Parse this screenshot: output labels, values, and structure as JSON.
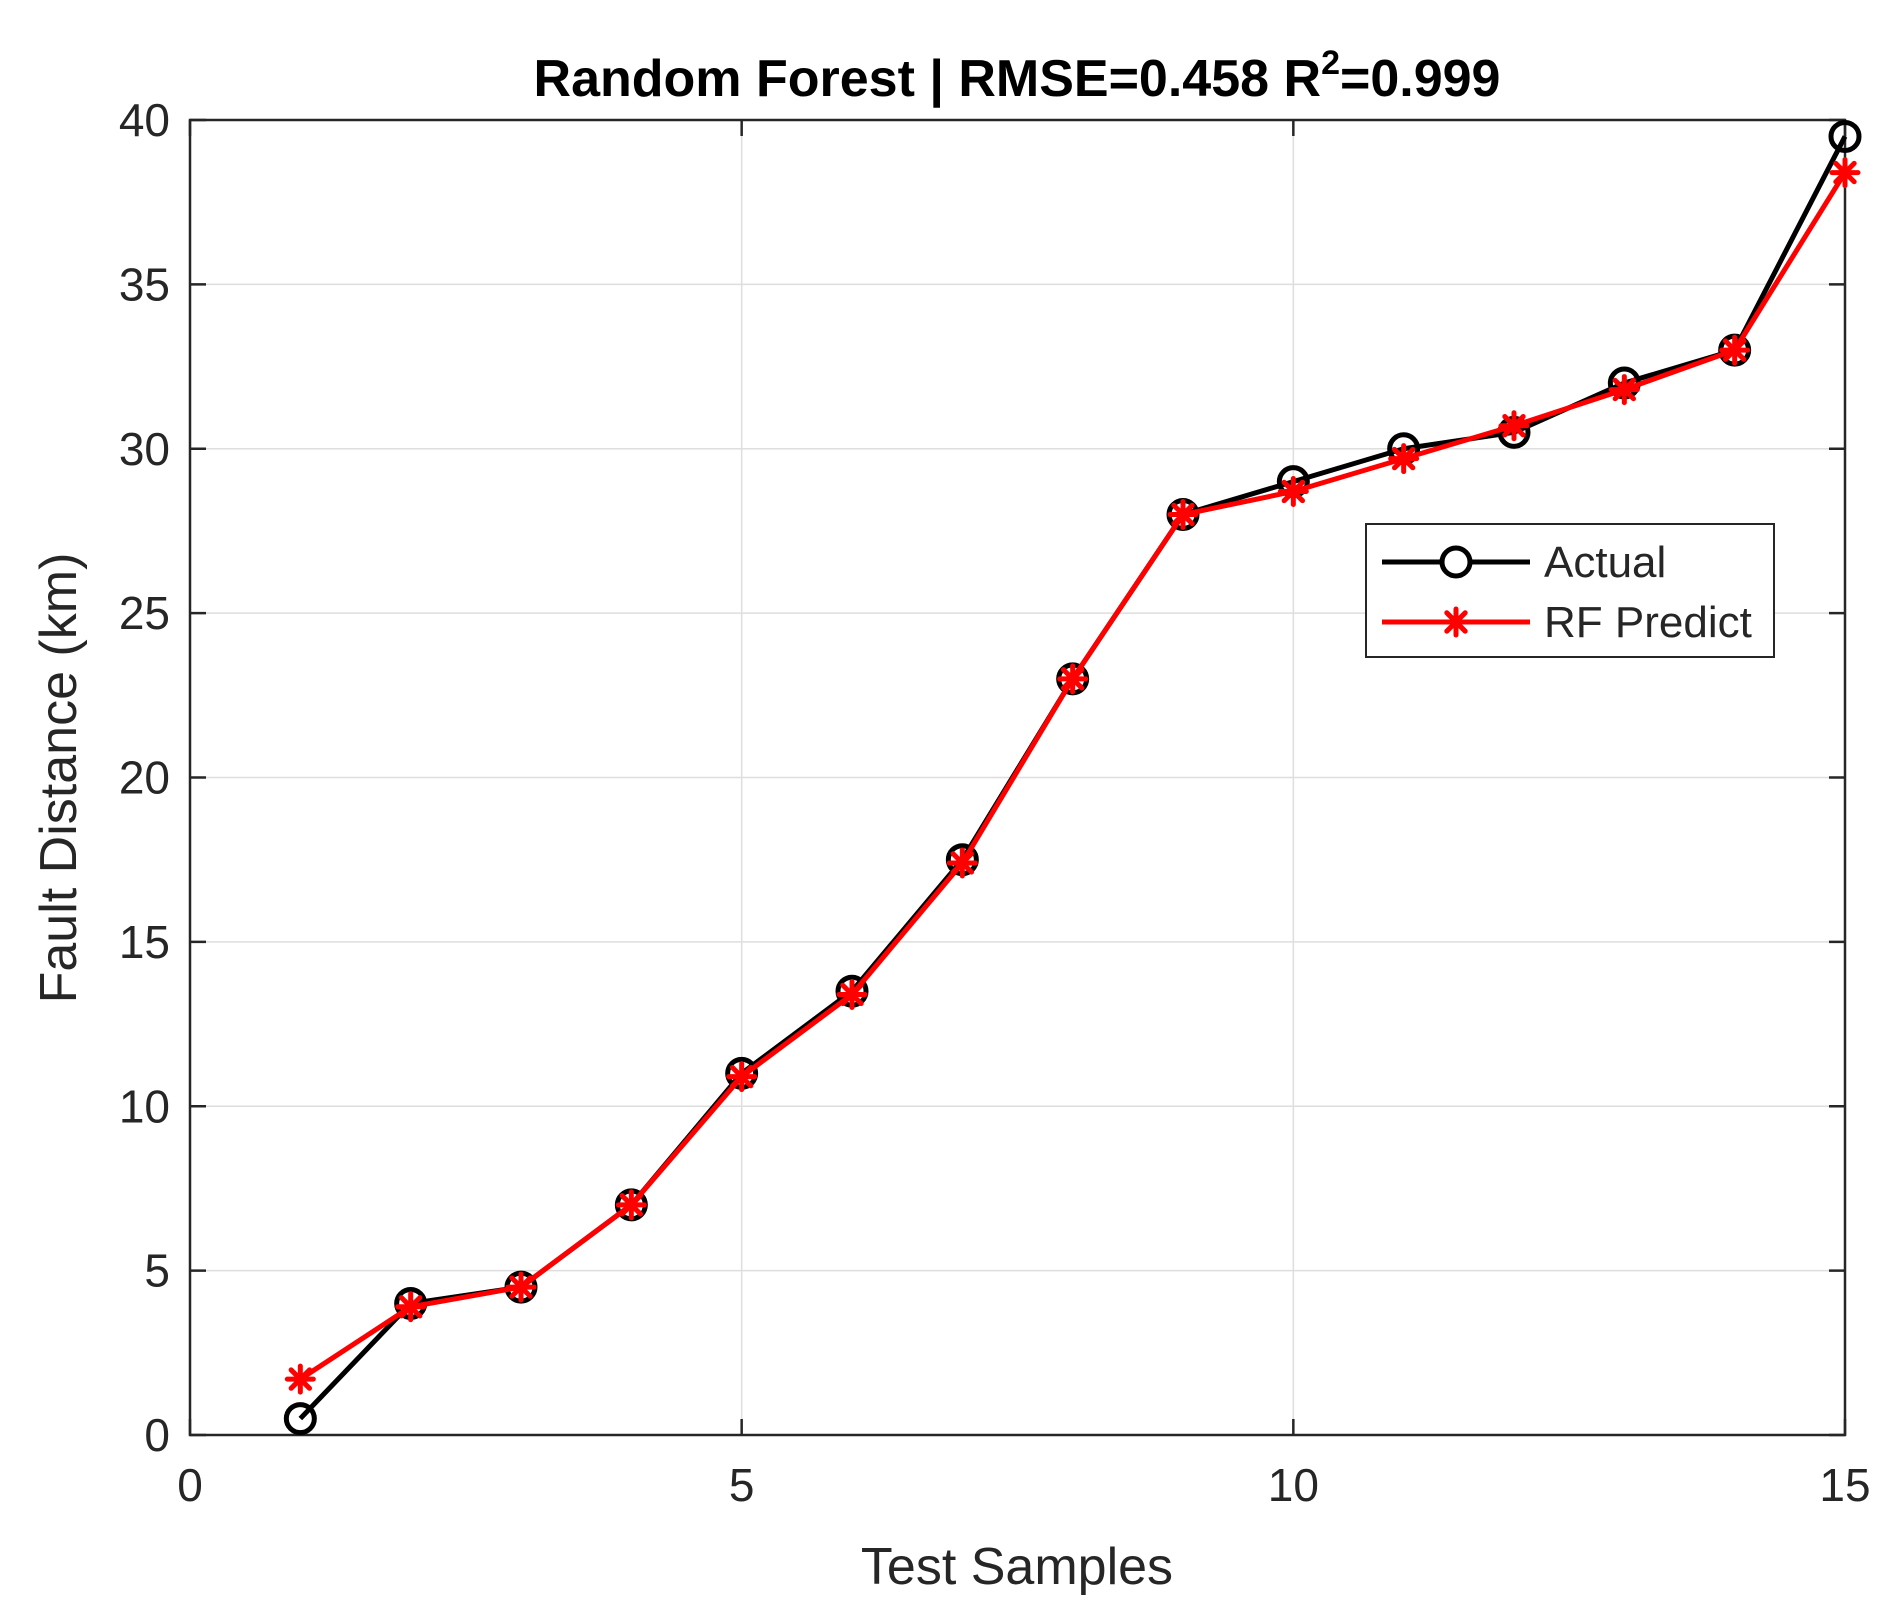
{
  "chart_data": {
    "type": "line",
    "title": "Random Forest | RMSE=0.458  R",
    "title_sup": "2",
    "title_suffix": "=0.999",
    "xlabel": "Test Samples",
    "ylabel": "Fault Distance (km)",
    "xlim": [
      0,
      15
    ],
    "ylim": [
      0,
      40
    ],
    "xticks": [
      0,
      5,
      10,
      15
    ],
    "yticks": [
      0,
      5,
      10,
      15,
      20,
      25,
      30,
      35,
      40
    ],
    "grid": true,
    "legend_position": "upper-right",
    "x": [
      1,
      2,
      3,
      4,
      5,
      6,
      7,
      8,
      9,
      10,
      11,
      12,
      13,
      14,
      15
    ],
    "series": [
      {
        "name": "Actual",
        "color": "#000000",
        "marker": "circle",
        "values": [
          0.5,
          4.0,
          4.5,
          7.0,
          11.0,
          13.5,
          17.5,
          23.0,
          28.0,
          29.0,
          30.0,
          30.5,
          32.0,
          33.0,
          39.5
        ]
      },
      {
        "name": "RF Predict",
        "color": "#ff0000",
        "marker": "asterisk",
        "values": [
          1.7,
          3.9,
          4.5,
          7.0,
          10.9,
          13.4,
          17.4,
          23.0,
          28.0,
          28.7,
          29.7,
          30.7,
          31.8,
          33.0,
          38.4
        ]
      }
    ]
  }
}
